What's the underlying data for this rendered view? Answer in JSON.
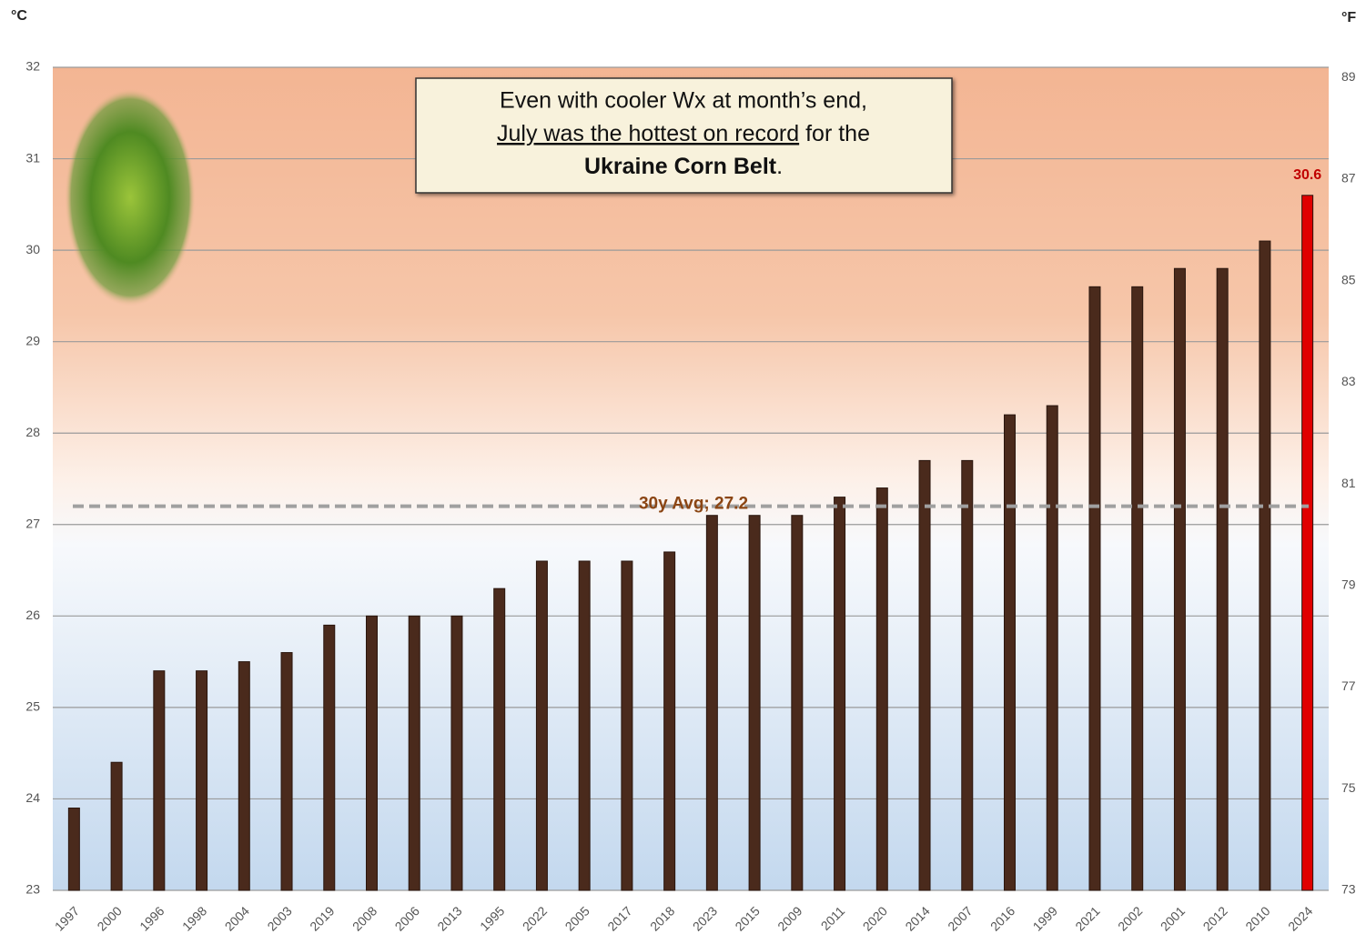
{
  "chart_data": {
    "type": "bar",
    "y_label": "°C",
    "y2_label": "°F",
    "categories": [
      "1997",
      "2000",
      "1996",
      "1998",
      "2004",
      "2003",
      "2019",
      "2008",
      "2006",
      "2013",
      "1995",
      "2022",
      "2005",
      "2017",
      "2018",
      "2023",
      "2015",
      "2009",
      "2011",
      "2020",
      "2014",
      "2007",
      "2016",
      "1999",
      "2021",
      "2002",
      "2001",
      "2012",
      "2010",
      "2024"
    ],
    "values": [
      23.9,
      24.4,
      25.4,
      25.4,
      25.5,
      25.6,
      25.9,
      26.0,
      26.0,
      26.0,
      26.3,
      26.6,
      26.6,
      26.6,
      26.7,
      27.1,
      27.1,
      27.1,
      27.3,
      27.4,
      27.7,
      27.7,
      28.2,
      28.3,
      29.6,
      29.6,
      29.8,
      29.8,
      30.1,
      30.6
    ],
    "colors": [
      "#4a2a1c",
      "#4a2a1c",
      "#4a2a1c",
      "#4a2a1c",
      "#4a2a1c",
      "#4a2a1c",
      "#4a2a1c",
      "#4a2a1c",
      "#4a2a1c",
      "#4a2a1c",
      "#4a2a1c",
      "#4a2a1c",
      "#4a2a1c",
      "#4a2a1c",
      "#4a2a1c",
      "#4a2a1c",
      "#4a2a1c",
      "#4a2a1c",
      "#4a2a1c",
      "#4a2a1c",
      "#4a2a1c",
      "#4a2a1c",
      "#4a2a1c",
      "#4a2a1c",
      "#4a2a1c",
      "#4a2a1c",
      "#4a2a1c",
      "#4a2a1c",
      "#4a2a1c",
      "#e00000"
    ],
    "highlight_color": "#e00000",
    "ylim": [
      23,
      32
    ],
    "yticks": [
      23,
      24,
      25,
      26,
      27,
      28,
      29,
      30,
      31,
      32
    ],
    "y2lim": [
      73,
      89.2
    ],
    "y2ticks": [
      73,
      75,
      77,
      79,
      81,
      83,
      85,
      87,
      89
    ],
    "grid": true,
    "average": {
      "value": 27.2,
      "label": "30y Avg; 27.2"
    },
    "annotation": {
      "line1": "Even with cooler Wx at month’s end,",
      "underlined": "July was the hottest on record",
      "rest": "for the",
      "bold": "Ukraine Corn Belt",
      "end": "."
    }
  }
}
